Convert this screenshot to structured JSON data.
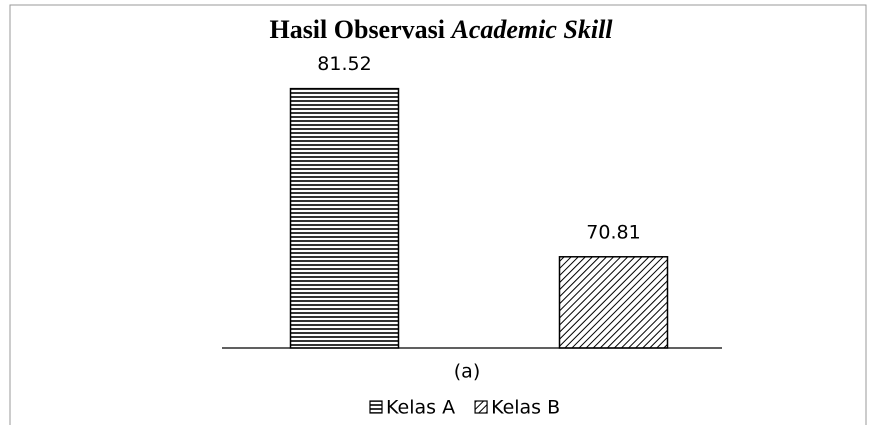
{
  "chart_data": {
    "type": "bar",
    "title": [
      "Hasil Observasi",
      "Academic Skill"
    ],
    "categories": [
      "(a)"
    ],
    "series": [
      {
        "name": "Kelas A",
        "color": "#000000",
        "pattern": "horizontal",
        "values": [
          81.52
        ]
      },
      {
        "name": "Kelas B",
        "color": "#000000",
        "pattern": "diagonal",
        "values": [
          70.81
        ]
      }
    ],
    "ylim": [
      65,
      85
    ],
    "legend": "bottom"
  }
}
